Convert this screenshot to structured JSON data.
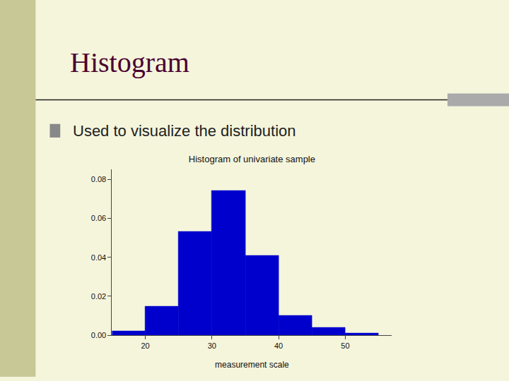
{
  "chart_data": {
    "type": "histogram",
    "title": "Histogram of univariate sample",
    "xlabel": "measurement scale",
    "annotations": [
      "Histogram",
      "Used to visualize the distribution"
    ],
    "bins": [
      15,
      20,
      25,
      30,
      35,
      40,
      45,
      50,
      55
    ],
    "values": [
      0.002,
      0.015,
      0.053,
      0.074,
      0.041,
      0.01,
      0.004,
      0.001
    ],
    "color": "#0000cc",
    "xlim": [
      15,
      57
    ],
    "xticks": [
      20,
      30,
      40,
      50
    ],
    "ylim": [
      0,
      0.085
    ],
    "yticks": [
      {
        "value": 0.0,
        "label": "0.00"
      },
      {
        "value": 0.02,
        "label": "0.02"
      },
      {
        "value": 0.04,
        "label": "0.04"
      },
      {
        "value": 0.06,
        "label": "0.06"
      },
      {
        "value": 0.08,
        "label": "0.08"
      }
    ],
    "grid": false
  }
}
